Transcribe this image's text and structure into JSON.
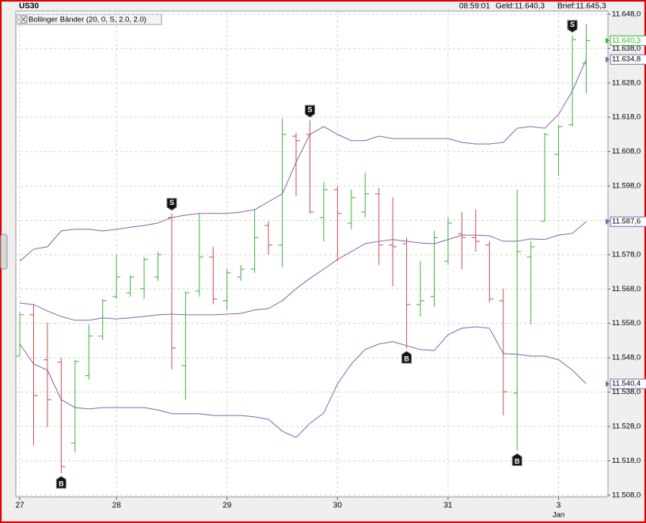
{
  "chart_data": {
    "type": "ohlc",
    "title": "US30",
    "time": "08:59:01",
    "bid": "Geld:11.640,3",
    "ask": "Brief:11.645,3",
    "indicator": "Bollinger Bänder (20, 0, S, 2.0, 2.0)",
    "categories": [
      "27",
      null,
      null,
      null,
      null,
      null,
      null,
      "28",
      null,
      null,
      null,
      null,
      null,
      null,
      null,
      "29",
      null,
      null,
      null,
      null,
      null,
      null,
      null,
      "30",
      null,
      null,
      null,
      null,
      null,
      null,
      null,
      "31",
      null,
      null,
      null,
      null,
      null,
      null,
      null,
      "3",
      null,
      null
    ],
    "month_label": {
      "index": 39,
      "label": "Jan"
    },
    "ohlc": {
      "up_color": "#3fb23f",
      "down_color": "#c9504d",
      "open": [
        11548.5,
        11560.5,
        11547.4,
        11546.7,
        11523.2,
        11542.8,
        11554.3,
        11565.8,
        11566.9,
        11568.1,
        11571.5,
        11588.8,
        11545.7,
        11567.4,
        11577.3,
        11564.6,
        11571.5,
        11573.8,
        11586.5,
        11580.8,
        11612.5,
        11613.0,
        11588.8,
        11596.9,
        11587.2,
        11590.4,
        11595.7,
        11580.8,
        11581.2,
        11563.5,
        11565.8,
        11576.1,
        11584.1,
        11583.0,
        11580.8,
        11564.6,
        11537.7,
        11577.3,
        11587.7,
        11607.2,
        11615.8,
        11633.7
      ],
      "high": [
        11561.2,
        11563.5,
        11558.2,
        11548.0,
        11547.4,
        11557.7,
        11565.1,
        11578.0,
        11572.0,
        11577.3,
        11578.9,
        11590.0,
        11567.4,
        11590.0,
        11580.3,
        11573.8,
        11575.0,
        11591.1,
        11587.7,
        11617.6,
        11613.5,
        11617.1,
        11599.2,
        11598.0,
        11596.9,
        11601.9,
        11597.4,
        11594.6,
        11583.0,
        11576.1,
        11584.9,
        11588.8,
        11590.4,
        11591.1,
        11581.9,
        11568.1,
        11596.9,
        11581.9,
        11613.5,
        11615.8,
        11641.8,
        11645.2
      ],
      "low": [
        11548.5,
        11522.5,
        11527.8,
        11514.4,
        11520.4,
        11541.6,
        11553.1,
        11565.1,
        11565.8,
        11565.1,
        11570.4,
        11544.6,
        11535.8,
        11565.8,
        11563.5,
        11561.9,
        11570.4,
        11572.7,
        11578.0,
        11574.3,
        11595.0,
        11590.0,
        11581.9,
        11576.1,
        11585.4,
        11588.8,
        11575.0,
        11568.8,
        11550.8,
        11560.0,
        11562.8,
        11575.0,
        11573.8,
        11578.9,
        11564.1,
        11531.2,
        11521.0,
        11557.7,
        11587.7,
        11601.0,
        11615.3,
        11625.0
      ],
      "close": [
        11560.5,
        11537.0,
        11535.8,
        11516.3,
        11546.9,
        11554.3,
        11564.6,
        11571.5,
        11571.5,
        11576.6,
        11578.0,
        11550.8,
        11566.9,
        11577.3,
        11565.1,
        11572.7,
        11573.8,
        11583.0,
        11580.8,
        11613.0,
        11611.2,
        11590.4,
        11596.9,
        11590.0,
        11594.6,
        11595.7,
        11580.8,
        11580.3,
        11563.5,
        11564.6,
        11583.0,
        11587.2,
        11583.0,
        11581.9,
        11565.1,
        11538.1,
        11578.9,
        11580.3,
        11613.0,
        11615.3,
        11640.6,
        11640.3
      ],
      "last_label": "11.640,3"
    },
    "bands": [
      {
        "color": "#8a63b0",
        "last_label": "11.634,8",
        "values": [
          11576.1,
          11579.6,
          11580.3,
          11584.9,
          11585.4,
          11585.4,
          11584.9,
          11585.4,
          11586.0,
          11586.5,
          11587.2,
          11588.8,
          11589.5,
          11590.0,
          11590.0,
          11590.0,
          11590.4,
          11591.1,
          11593.4,
          11595.7,
          11604.9,
          11613.0,
          11615.3,
          11613.0,
          11611.2,
          11611.2,
          11612.5,
          11611.8,
          11611.8,
          11611.8,
          11611.8,
          11611.8,
          11610.7,
          11610.2,
          11610.2,
          11610.7,
          11614.8,
          11615.3,
          11614.8,
          11618.8,
          11625.7,
          11634.8
        ]
      },
      {
        "color": "#8a63b0",
        "last_label": "11.587,6",
        "values": [
          11563.9,
          11563.5,
          11561.6,
          11560.0,
          11558.9,
          11558.9,
          11559.6,
          11559.3,
          11559.6,
          11560.0,
          11560.5,
          11560.7,
          11560.5,
          11560.5,
          11560.5,
          11560.7,
          11560.9,
          11561.9,
          11562.3,
          11564.6,
          11568.1,
          11571.1,
          11573.8,
          11576.6,
          11578.9,
          11581.2,
          11581.9,
          11582.4,
          11581.9,
          11581.4,
          11581.2,
          11582.4,
          11583.7,
          11583.7,
          11583.5,
          11581.9,
          11581.9,
          11582.6,
          11582.4,
          11583.7,
          11584.2,
          11587.6
        ]
      },
      {
        "color": "#8a63b0",
        "last_label": "11.540,4",
        "values": [
          11552.0,
          11546.2,
          11544.4,
          11535.8,
          11533.5,
          11533.1,
          11533.5,
          11533.5,
          11533.5,
          11533.5,
          11532.8,
          11531.7,
          11531.7,
          11531.7,
          11531.2,
          11531.2,
          11531.2,
          11530.8,
          11530.1,
          11526.6,
          11524.8,
          11528.9,
          11531.9,
          11540.4,
          11546.2,
          11550.4,
          11552.0,
          11552.7,
          11551.5,
          11550.4,
          11550.1,
          11554.7,
          11556.6,
          11557.0,
          11556.6,
          11549.2,
          11549.0,
          11548.5,
          11548.5,
          11547.4,
          11544.4,
          11540.4
        ]
      }
    ],
    "signals": [
      {
        "index": 3,
        "label": "B"
      },
      {
        "index": 11,
        "label": "S"
      },
      {
        "index": 21,
        "label": "S"
      },
      {
        "index": 28,
        "label": "B"
      },
      {
        "index": 36,
        "label": "B"
      },
      {
        "index": 40,
        "label": "S"
      }
    ],
    "ylim": [
      11507.5,
      11648.9
    ],
    "yticks": [
      {
        "value": 11508,
        "label": "11.508,0"
      },
      {
        "value": 11518,
        "label": "11.518,0"
      },
      {
        "value": 11528,
        "label": "11.528,0"
      },
      {
        "value": 11538,
        "label": "11.538,0"
      },
      {
        "value": 11548,
        "label": "11.548,0"
      },
      {
        "value": 11558,
        "label": "11.558,0"
      },
      {
        "value": 11568,
        "label": "11.568,0"
      },
      {
        "value": 11578,
        "label": "11.578,0"
      },
      {
        "value": 11588,
        "label": "11.588,0"
      },
      {
        "value": 11598,
        "label": "11.598,0"
      },
      {
        "value": 11608,
        "label": "11.608,0"
      },
      {
        "value": 11618,
        "label": "11.618,0"
      },
      {
        "value": 11628,
        "label": "11.628,0"
      },
      {
        "value": 11638,
        "label": "11.638,0"
      },
      {
        "value": 11648,
        "label": "11.648,0"
      }
    ],
    "grid": true
  }
}
